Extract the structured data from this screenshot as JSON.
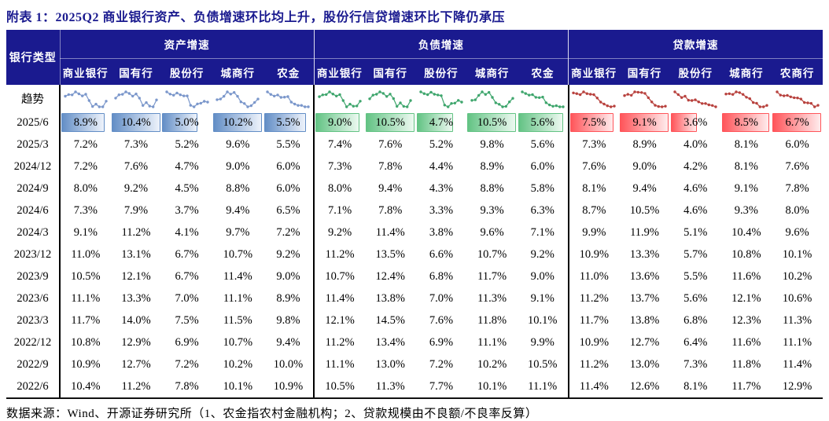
{
  "title": "附表 1：2025Q2 商业银行资产、负债增速环比均上升，股份行信贷增速环比下降仍承压",
  "footer": "数据来源：Wind、开源证券研究所（1、农金指农村金融机构；2、贷款规模由不良额/不良率反算）",
  "table": {
    "row_label_header": "银行类型",
    "trend_label": "趋势",
    "groups": [
      {
        "label": "资产增速",
        "columns": [
          "商业银行",
          "国有行",
          "股份行",
          "城商行",
          "农金"
        ]
      },
      {
        "label": "负债增速",
        "columns": [
          "商业银行",
          "国有行",
          "股份行",
          "城商行",
          "农金"
        ]
      },
      {
        "label": "贷款增速",
        "columns": [
          "商业银行",
          "国有行",
          "股份行",
          "城商行",
          "农商行"
        ]
      }
    ],
    "rows": [
      {
        "date": "2025/6",
        "highlight": true,
        "values": [
          8.9,
          10.4,
          5.0,
          10.2,
          5.5,
          9.0,
          10.5,
          4.7,
          10.5,
          5.6,
          7.5,
          9.1,
          3.6,
          8.5,
          6.7
        ]
      },
      {
        "date": "2025/3",
        "highlight": false,
        "values": [
          7.2,
          7.3,
          5.2,
          9.6,
          5.5,
          7.4,
          7.6,
          5.2,
          9.8,
          5.6,
          7.3,
          8.9,
          4.0,
          8.1,
          6.0
        ]
      },
      {
        "date": "2024/12",
        "highlight": false,
        "values": [
          7.2,
          7.6,
          4.7,
          9.0,
          6.0,
          7.3,
          7.8,
          4.4,
          8.9,
          6.0,
          7.6,
          9.0,
          4.2,
          8.1,
          7.6
        ]
      },
      {
        "date": "2024/9",
        "highlight": false,
        "values": [
          8.0,
          9.2,
          4.5,
          8.8,
          6.0,
          8.0,
          9.4,
          4.3,
          8.8,
          5.8,
          8.1,
          9.4,
          4.6,
          9.1,
          7.8
        ]
      },
      {
        "date": "2024/6",
        "highlight": false,
        "values": [
          7.3,
          7.9,
          3.7,
          9.4,
          6.5,
          7.1,
          7.8,
          3.3,
          9.3,
          6.3,
          8.7,
          10.5,
          4.6,
          9.3,
          8.0
        ]
      },
      {
        "date": "2024/3",
        "highlight": false,
        "values": [
          9.1,
          11.2,
          4.1,
          9.7,
          7.2,
          9.2,
          11.4,
          3.8,
          9.6,
          7.1,
          9.9,
          11.9,
          5.1,
          10.4,
          9.6
        ]
      },
      {
        "date": "2023/12",
        "highlight": false,
        "values": [
          11.0,
          13.1,
          6.7,
          10.7,
          9.2,
          11.2,
          13.5,
          6.6,
          10.7,
          9.2,
          10.9,
          13.3,
          5.7,
          10.8,
          10.1
        ]
      },
      {
        "date": "2023/9",
        "highlight": false,
        "values": [
          10.5,
          12.1,
          6.7,
          11.4,
          9.0,
          10.7,
          12.4,
          6.8,
          11.7,
          9.0,
          11.0,
          13.6,
          5.5,
          11.6,
          10.2
        ]
      },
      {
        "date": "2023/6",
        "highlight": false,
        "values": [
          11.1,
          13.3,
          7.0,
          11.1,
          8.9,
          11.4,
          13.8,
          7.0,
          11.3,
          9.1,
          11.2,
          13.7,
          5.6,
          12.1,
          10.6
        ]
      },
      {
        "date": "2023/3",
        "highlight": false,
        "values": [
          11.7,
          14.0,
          7.5,
          11.5,
          9.8,
          12.1,
          14.5,
          7.6,
          11.8,
          10.1,
          11.7,
          13.8,
          6.8,
          12.3,
          11.3
        ]
      },
      {
        "date": "2022/12",
        "highlight": false,
        "values": [
          10.8,
          12.9,
          6.9,
          10.7,
          9.4,
          11.2,
          13.4,
          6.9,
          11.1,
          9.9,
          10.9,
          12.7,
          6.4,
          11.6,
          11.1
        ]
      },
      {
        "date": "2022/9",
        "highlight": false,
        "values": [
          10.9,
          12.7,
          7.2,
          10.2,
          10.0,
          11.1,
          13.0,
          7.2,
          10.2,
          10.5,
          11.2,
          13.0,
          7.3,
          11.8,
          11.4
        ]
      },
      {
        "date": "2022/6",
        "highlight": false,
        "values": [
          10.4,
          11.2,
          7.8,
          10.1,
          10.9,
          10.5,
          11.3,
          7.7,
          10.1,
          11.1,
          11.4,
          12.6,
          8.1,
          11.7,
          12.9
        ]
      }
    ],
    "highlight_bar_fractions": [
      0.84,
      0.93,
      0.66,
      0.93,
      0.8,
      0.84,
      0.93,
      0.68,
      0.93,
      0.86,
      0.84,
      0.92,
      0.48,
      0.9,
      0.93
    ]
  },
  "colors": {
    "header_bg": "#1a1a8f",
    "title_text": "#1a1a8f",
    "asset_bar": "#638EC6",
    "liability_bar": "#63C384",
    "loan_bar": "#FF555A",
    "asset_bar_fade": "#eef3fb",
    "liability_bar_fade": "#edf9f1",
    "loan_bar_fade": "#ffeced",
    "asset_spark": "#7b97cb",
    "liability_spark": "#3fa66d",
    "loan_spark": "#b8423e"
  }
}
